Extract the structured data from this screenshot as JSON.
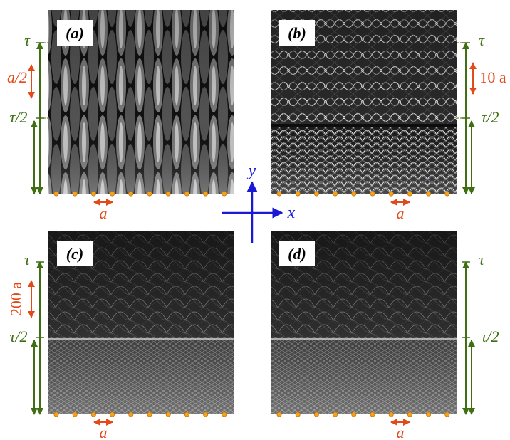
{
  "panels": [
    {
      "id": "a",
      "tag": "(a)",
      "side": "left",
      "scale_label": "a/2",
      "base_label": "a",
      "top_label": "τ",
      "mid_label": "τ/2",
      "style": "beams"
    },
    {
      "id": "b",
      "tag": "(b)",
      "side": "right",
      "scale_label": "10 a",
      "base_label": "a",
      "top_label": "τ",
      "mid_label": "τ/2",
      "style": "mesh"
    },
    {
      "id": "c",
      "tag": "(c)",
      "side": "left",
      "scale_label": "200 a",
      "base_label": "a",
      "top_label": "τ",
      "mid_label": "τ/2",
      "style": "fine"
    },
    {
      "id": "d",
      "tag": "(d)",
      "side": "right",
      "scale_label": "",
      "base_label": "a",
      "top_label": "τ",
      "mid_label": "τ/2",
      "style": "fine"
    }
  ],
  "axes": {
    "x_label": "x",
    "y_label": "y"
  },
  "colors": {
    "green": "#3f6f12",
    "orange": "#e34a1a",
    "blue": "#1a1ad6",
    "dot": "#f7a21a"
  }
}
